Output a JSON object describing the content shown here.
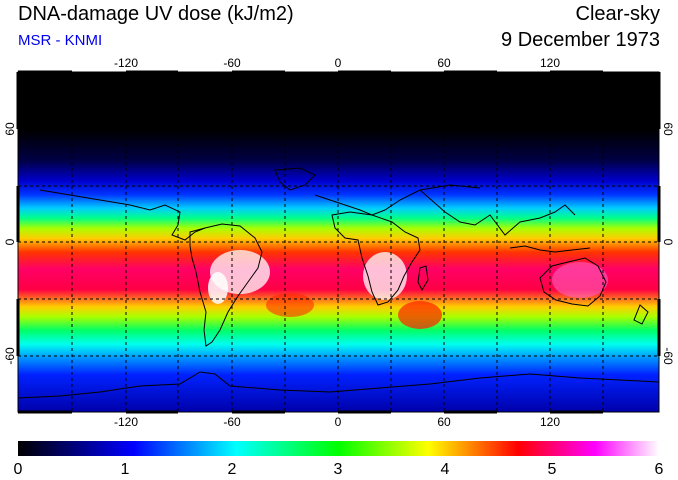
{
  "header": {
    "title": "DNA-damage UV dose (kJ/m2)",
    "subtitle": "MSR - KNMI",
    "sky_condition": "Clear-sky",
    "date": "9 December 1973"
  },
  "map": {
    "longitude_ticks_top": [
      "-120",
      "-60",
      "0",
      "60",
      "120"
    ],
    "longitude_ticks_bottom": [
      "-120",
      "-60",
      "0",
      "60",
      "120"
    ],
    "latitude_ticks_left": [
      "60",
      "0",
      "-60"
    ],
    "latitude_ticks_right": [
      "60",
      "0",
      "-60"
    ],
    "longitude_values": [
      -120,
      -60,
      0,
      60,
      120
    ],
    "latitude_values": [
      60,
      0,
      -60
    ]
  },
  "colorbar": {
    "labels": [
      "0",
      "1",
      "2",
      "3",
      "4",
      "5",
      "6"
    ],
    "min": 0,
    "max": 6,
    "stops": [
      "#000000",
      "#00008b",
      "#0000ff",
      "#00ffff",
      "#00ff00",
      "#ffff00",
      "#ff0000",
      "#ff00ff",
      "#ffffff"
    ]
  },
  "legend_colors": {
    "subtitle_color": "#0000ee",
    "coast_color": "#000000"
  }
}
